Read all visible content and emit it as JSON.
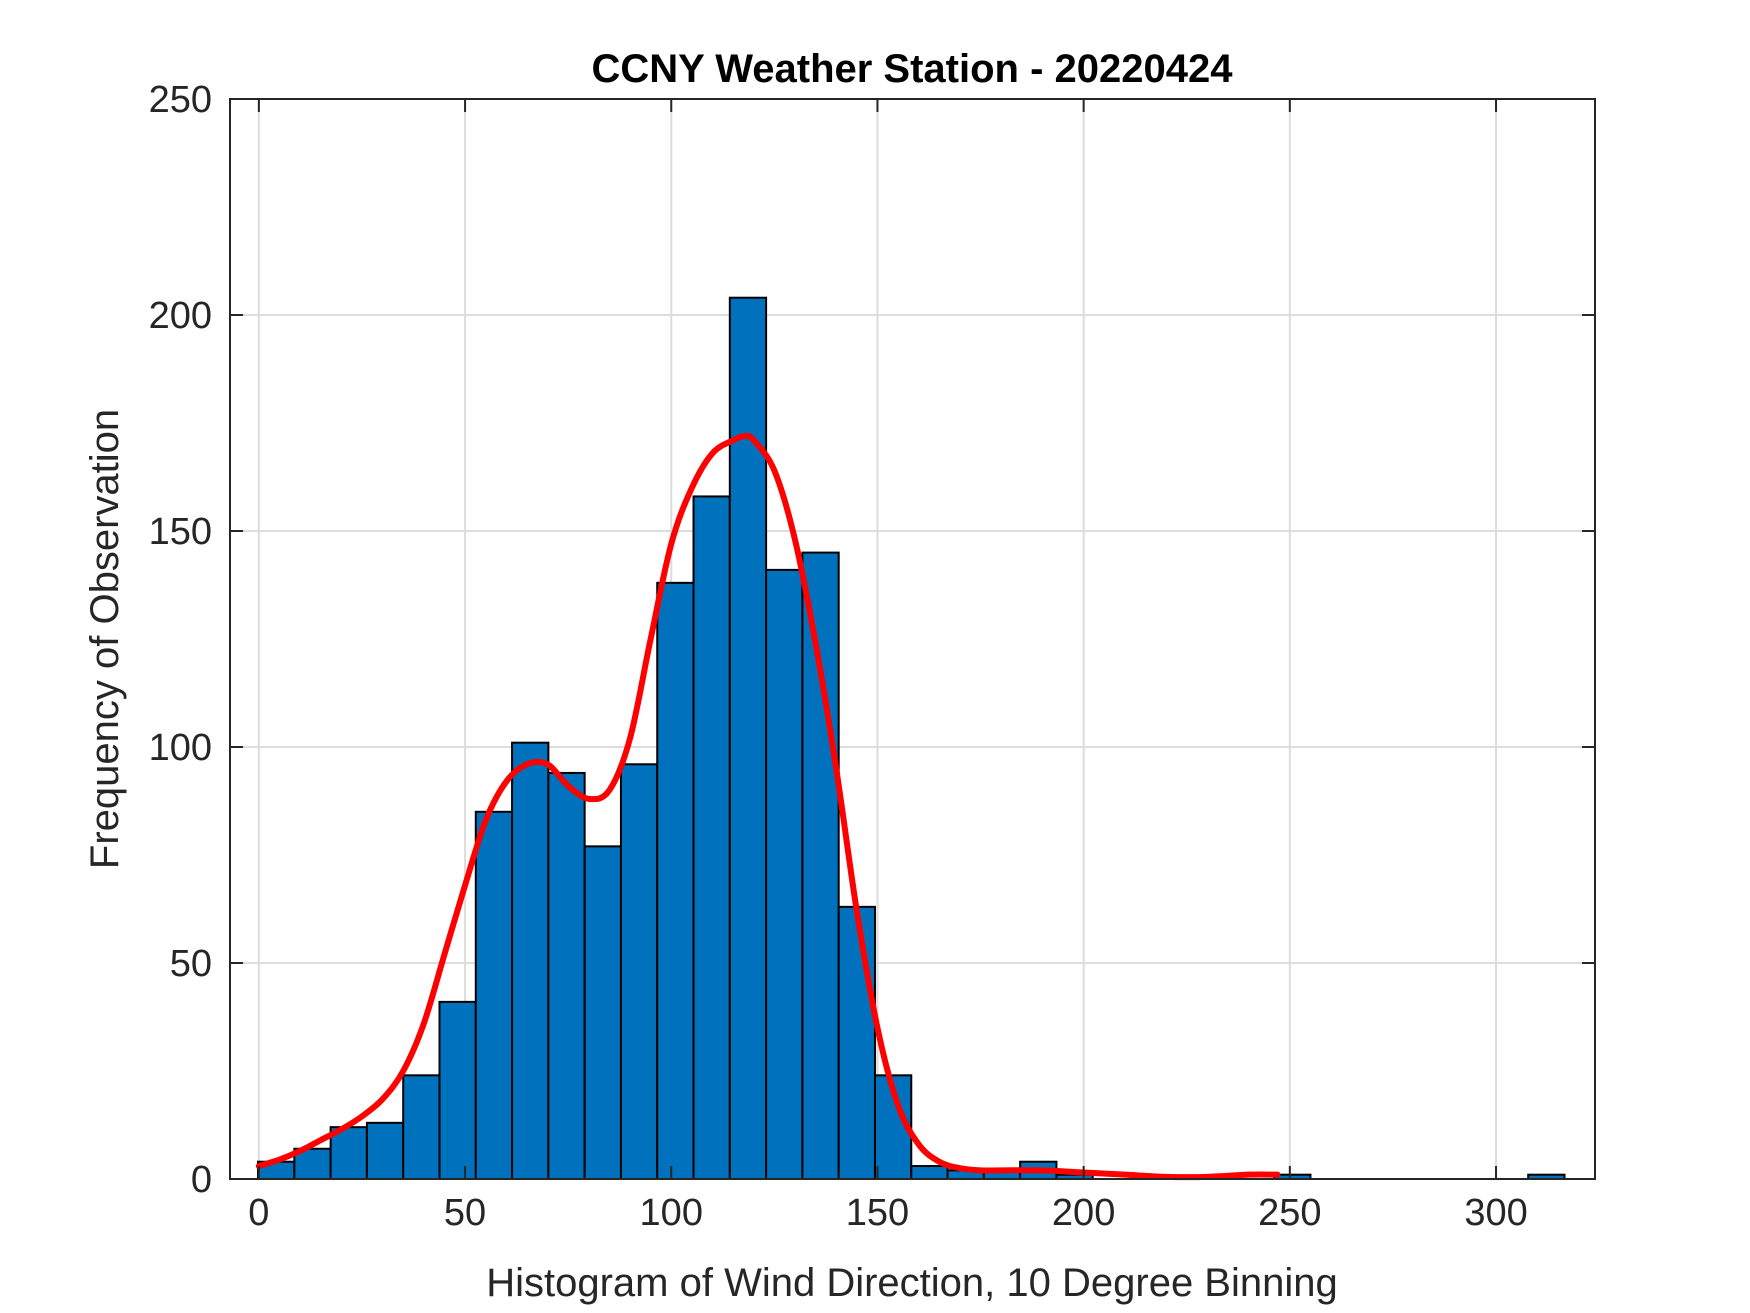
{
  "chart_data": {
    "type": "bar",
    "title": "CCNY Weather Station - 20220424",
    "xlabel": "Histogram of Wind Direction, 10 Degree Binning",
    "ylabel": "Frequency of Observation",
    "xlim": [
      -7,
      324
    ],
    "ylim": [
      0,
      250
    ],
    "xticks": [
      0,
      50,
      100,
      150,
      200,
      250,
      300
    ],
    "yticks": [
      0,
      50,
      100,
      150,
      200,
      250
    ],
    "grid": true,
    "bin_width": 8.8,
    "bins": [
      {
        "start": -0.2,
        "value": 4
      },
      {
        "start": 8.6,
        "value": 7
      },
      {
        "start": 17.4,
        "value": 12
      },
      {
        "start": 26.2,
        "value": 13
      },
      {
        "start": 35.0,
        "value": 24
      },
      {
        "start": 43.8,
        "value": 41
      },
      {
        "start": 52.6,
        "value": 85
      },
      {
        "start": 61.4,
        "value": 101
      },
      {
        "start": 70.2,
        "value": 94
      },
      {
        "start": 79.0,
        "value": 77
      },
      {
        "start": 87.8,
        "value": 96
      },
      {
        "start": 96.6,
        "value": 138
      },
      {
        "start": 105.4,
        "value": 158
      },
      {
        "start": 114.2,
        "value": 204
      },
      {
        "start": 123.0,
        "value": 141
      },
      {
        "start": 131.8,
        "value": 145
      },
      {
        "start": 140.6,
        "value": 63
      },
      {
        "start": 149.4,
        "value": 24
      },
      {
        "start": 158.2,
        "value": 3
      },
      {
        "start": 167.0,
        "value": 2
      },
      {
        "start": 175.8,
        "value": 2
      },
      {
        "start": 184.6,
        "value": 4
      },
      {
        "start": 193.4,
        "value": 1
      },
      {
        "start": 246.2,
        "value": 1
      },
      {
        "start": 307.8,
        "value": 1
      }
    ],
    "bar_color": "#0072BD",
    "density_curve": {
      "color": "#FF0000",
      "x": [
        0,
        5,
        10,
        15,
        20,
        25,
        30,
        35,
        40,
        45,
        50,
        55,
        60,
        65,
        70,
        75,
        80,
        85,
        90,
        95,
        100,
        105,
        110,
        115,
        118,
        120,
        125,
        130,
        135,
        140,
        145,
        150,
        155,
        160,
        165,
        170,
        175,
        180,
        190,
        200,
        210,
        220,
        230,
        240,
        247
      ],
      "y": [
        3,
        4.5,
        6.5,
        9,
        11.5,
        14.5,
        18.5,
        25,
        36,
        52,
        68,
        83,
        92,
        96,
        96,
        91,
        88,
        90,
        102,
        125,
        147,
        160,
        168,
        171,
        172,
        171,
        164,
        148,
        124,
        95,
        62,
        35,
        17,
        8,
        4,
        2.5,
        2,
        2,
        2,
        1.5,
        1,
        0.5,
        0.5,
        1,
        1
      ]
    }
  }
}
